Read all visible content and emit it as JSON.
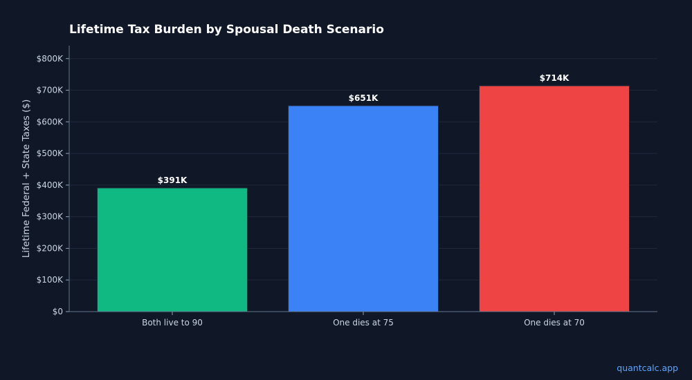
{
  "chart_data": {
    "type": "bar",
    "title": "Lifetime Tax Burden by Spousal Death Scenario",
    "xlabel": "",
    "ylabel": "Lifetime Federal + State Taxes ($)",
    "categories": [
      "Both live to 90",
      "One dies at 75",
      "One dies at 70"
    ],
    "values": [
      391000,
      651000,
      714000
    ],
    "data_labels": [
      "$391K",
      "$651K",
      "$714K"
    ],
    "colors": [
      "#10b981",
      "#3b82f6",
      "#ef4444"
    ],
    "ylim": [
      0,
      841000
    ],
    "yticks": [
      0,
      100000,
      200000,
      300000,
      400000,
      500000,
      600000,
      700000,
      800000
    ],
    "ytick_labels": [
      "$0",
      "$100K",
      "$200K",
      "$300K",
      "$400K",
      "$500K",
      "$600K",
      "$700K",
      "$800K"
    ],
    "grid": true
  },
  "watermark": "quantcalc.app"
}
